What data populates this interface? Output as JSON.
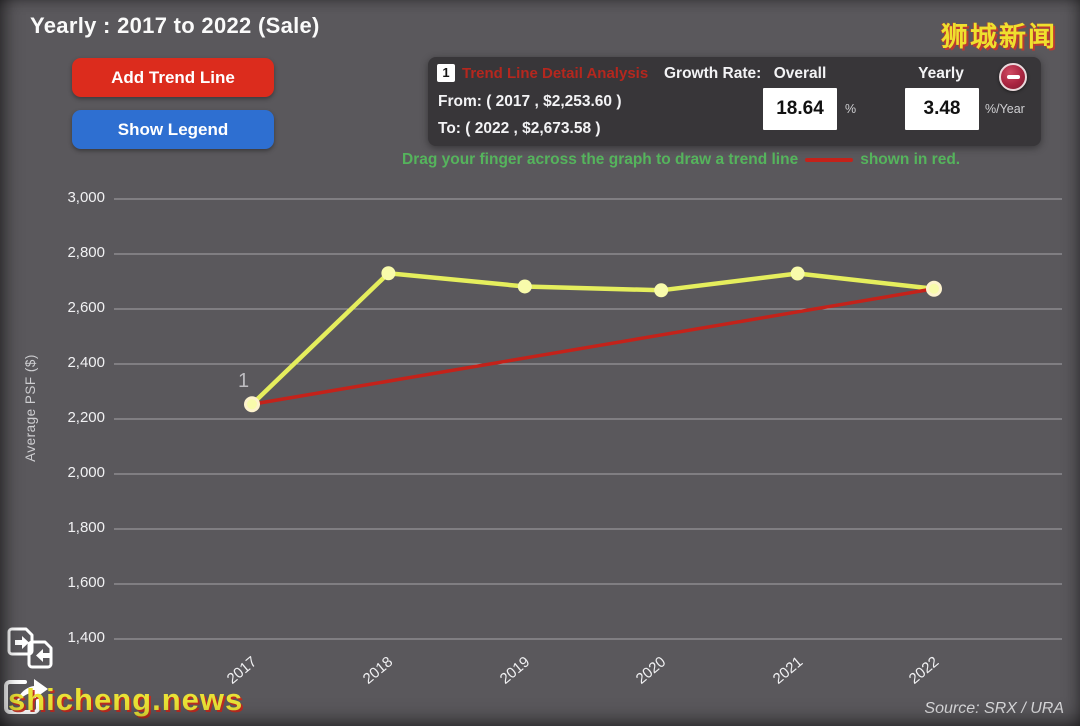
{
  "header": {
    "title": "Yearly : 2017 to 2022 (Sale)",
    "site_watermark": "狮城新闻"
  },
  "toolbar": {
    "add_trend_line": "Add Trend Line",
    "show_legend": "Show Legend"
  },
  "analysis_panel": {
    "badge": "1",
    "title": "Trend Line Detail Analysis",
    "growth_rate_label": "Growth Rate:",
    "overall_label": "Overall",
    "yearly_label": "Yearly",
    "from_text": "From: ( 2017 , $2,253.60 )",
    "to_text": "To: ( 2022 , $2,673.58 )",
    "overall_value": "18.64",
    "overall_unit": "%",
    "yearly_value": "3.48",
    "yearly_unit": "%/Year"
  },
  "instruction": {
    "before": "Drag your finger across the graph to draw a trend line",
    "after": "shown in red.",
    "sample_color": "#c4221a"
  },
  "footer": {
    "watermark": "shicheng.news",
    "source": "Source: SRX / URA"
  },
  "icons": {
    "remove_trend_line": "minus-circle",
    "bottom_left_1": "compare-pages",
    "bottom_left_2": "share-arrow"
  },
  "colors": {
    "add_trend_line_button": "#dc2c1d",
    "show_legend_button": "#2e6fd1",
    "trend_line_red": "#c4221a",
    "series_yellow": "#e5ee5d",
    "instruction_green": "#55b45c",
    "watermark_yellow": "#e9e236"
  },
  "chart_data": {
    "type": "line",
    "title": "Yearly : 2017 to 2022 (Sale)",
    "x": [
      2017,
      2018,
      2019,
      2020,
      2021,
      2022
    ],
    "x_labels": [
      "2017",
      "2018",
      "2019",
      "2020",
      "2021",
      "2022"
    ],
    "series": [
      {
        "name": "Average PSF ($)",
        "color": "#e5ee5d",
        "marker_fill": "#f8fbab",
        "values": [
          2253.6,
          2730,
          2682,
          2668,
          2729,
          2673.58
        ]
      }
    ],
    "trend_line": {
      "color": "#c4221a",
      "from": {
        "x": 2017,
        "y": 2253.6
      },
      "to": {
        "x": 2022,
        "y": 2673.58
      },
      "label": "1"
    },
    "xlabel": "",
    "ylabel": "Average PSF ($)",
    "yticks": [
      3000,
      2800,
      2600,
      2400,
      2200,
      2000,
      1800,
      1600,
      1400
    ],
    "ylim": [
      1400,
      3000
    ],
    "grid": "horizontal",
    "legend": "hidden"
  }
}
